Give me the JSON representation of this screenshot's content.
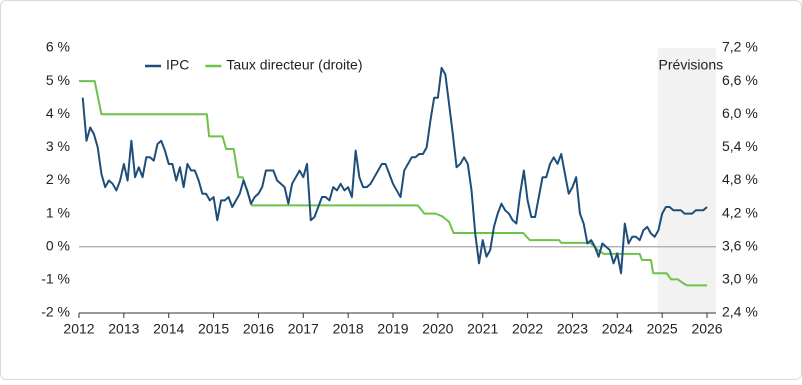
{
  "chart_data": {
    "type": "line",
    "xlim": [
      2012,
      2026.2
    ],
    "xticks": [
      2012,
      2013,
      2014,
      2015,
      2016,
      2017,
      2018,
      2019,
      2020,
      2021,
      2022,
      2023,
      2024,
      2025,
      2026
    ],
    "ylim": [
      -2,
      6
    ],
    "yticks": [
      {
        "value": 6,
        "label": "6 %"
      },
      {
        "value": 5,
        "label": "5 %"
      },
      {
        "value": 4,
        "label": "4 %"
      },
      {
        "value": 3,
        "label": "3 %"
      },
      {
        "value": 2,
        "label": "2 %"
      },
      {
        "value": 1,
        "label": "1 %"
      },
      {
        "value": 0,
        "label": "0 %"
      },
      {
        "value": -1,
        "label": "-1 %"
      },
      {
        "value": -2,
        "label": "-2 %"
      }
    ],
    "y2lim": [
      2.4,
      7.2
    ],
    "y2ticks": [
      {
        "value": 7.2,
        "label": "7,2 %"
      },
      {
        "value": 6.6,
        "label": "6,6 %"
      },
      {
        "value": 6.0,
        "label": "6,0 %"
      },
      {
        "value": 5.4,
        "label": "5,4 %"
      },
      {
        "value": 4.8,
        "label": "4,8 %"
      },
      {
        "value": 4.2,
        "label": "4,2 %"
      },
      {
        "value": 3.6,
        "label": "3,6 %"
      },
      {
        "value": 3.0,
        "label": "3,0 %"
      },
      {
        "value": 2.4,
        "label": "2,4 %"
      }
    ],
    "legend": "top-left",
    "annotations": [
      {
        "text": "Prévisions",
        "x": 2024.9
      }
    ],
    "series": [
      {
        "name": "IPC",
        "color": "#1d4e7a",
        "x": [
          2012.083,
          2012.167,
          2012.25,
          2012.333,
          2012.417,
          2012.5,
          2012.583,
          2012.667,
          2012.75,
          2012.833,
          2012.917,
          2013.0,
          2013.083,
          2013.167,
          2013.25,
          2013.333,
          2013.417,
          2013.5,
          2013.583,
          2013.667,
          2013.75,
          2013.833,
          2013.917,
          2014.0,
          2014.083,
          2014.167,
          2014.25,
          2014.333,
          2014.417,
          2014.5,
          2014.583,
          2014.667,
          2014.75,
          2014.833,
          2014.917,
          2015.0,
          2015.083,
          2015.167,
          2015.25,
          2015.333,
          2015.417,
          2015.5,
          2015.583,
          2015.667,
          2015.75,
          2015.833,
          2015.917,
          2016.0,
          2016.083,
          2016.167,
          2016.25,
          2016.333,
          2016.417,
          2016.5,
          2016.583,
          2016.667,
          2016.75,
          2016.833,
          2016.917,
          2017.0,
          2017.083,
          2017.167,
          2017.25,
          2017.333,
          2017.417,
          2017.5,
          2017.583,
          2017.667,
          2017.75,
          2017.833,
          2017.917,
          2018.0,
          2018.083,
          2018.167,
          2018.25,
          2018.333,
          2018.417,
          2018.5,
          2018.583,
          2018.667,
          2018.75,
          2018.833,
          2018.917,
          2019.0,
          2019.083,
          2019.167,
          2019.25,
          2019.333,
          2019.417,
          2019.5,
          2019.583,
          2019.667,
          2019.75,
          2019.833,
          2019.917,
          2020.0,
          2020.083,
          2020.167,
          2020.25,
          2020.333,
          2020.417,
          2020.5,
          2020.583,
          2020.667,
          2020.75,
          2020.833,
          2020.917,
          2021.0,
          2021.083,
          2021.167,
          2021.25,
          2021.333,
          2021.417,
          2021.5,
          2021.583,
          2021.667,
          2021.75,
          2021.833,
          2021.917,
          2022.0,
          2022.083,
          2022.167,
          2022.25,
          2022.333,
          2022.417,
          2022.5,
          2022.583,
          2022.667,
          2022.75,
          2022.833,
          2022.917,
          2023.0,
          2023.083,
          2023.167,
          2023.25,
          2023.333,
          2023.417,
          2023.5,
          2023.583,
          2023.667,
          2023.75,
          2023.833,
          2023.917,
          2024.0,
          2024.083,
          2024.167,
          2024.25,
          2024.333,
          2024.417,
          2024.5,
          2024.583,
          2024.667,
          2024.75,
          2024.833,
          2024.917,
          2025.0,
          2025.083,
          2025.167,
          2025.25,
          2025.333,
          2025.417,
          2025.5,
          2025.583,
          2025.667,
          2025.75,
          2025.833,
          2025.917,
          2026.0
        ],
        "values": [
          4.5,
          3.2,
          3.6,
          3.4,
          3.0,
          2.2,
          1.8,
          2.0,
          1.9,
          1.7,
          2.0,
          2.5,
          2.0,
          3.2,
          2.1,
          2.4,
          2.1,
          2.7,
          2.7,
          2.6,
          3.1,
          3.2,
          2.9,
          2.5,
          2.5,
          2.0,
          2.4,
          1.8,
          2.5,
          2.3,
          2.3,
          2.0,
          1.6,
          1.6,
          1.4,
          1.5,
          0.8,
          1.4,
          1.4,
          1.5,
          1.2,
          1.4,
          1.6,
          2.0,
          1.7,
          1.3,
          1.5,
          1.6,
          1.8,
          2.3,
          2.3,
          2.3,
          2.0,
          1.9,
          1.8,
          1.3,
          1.9,
          2.1,
          2.3,
          2.1,
          2.5,
          0.8,
          0.9,
          1.2,
          1.5,
          1.5,
          1.4,
          1.8,
          1.7,
          1.9,
          1.7,
          1.8,
          1.5,
          2.9,
          2.1,
          1.8,
          1.8,
          1.9,
          2.1,
          2.3,
          2.5,
          2.5,
          2.2,
          1.9,
          1.7,
          1.5,
          2.3,
          2.5,
          2.7,
          2.7,
          2.8,
          2.8,
          3.0,
          3.8,
          4.5,
          4.5,
          5.4,
          5.2,
          4.3,
          3.4,
          2.4,
          2.5,
          2.7,
          2.5,
          1.7,
          0.4,
          -0.5,
          0.2,
          -0.3,
          -0.1,
          0.6,
          1.0,
          1.3,
          1.1,
          1.0,
          0.8,
          0.7,
          1.6,
          2.3,
          1.4,
          0.9,
          0.9,
          1.5,
          2.1,
          2.1,
          2.5,
          2.7,
          2.5,
          2.8,
          2.2,
          1.6,
          1.8,
          2.1,
          1.0,
          0.7,
          0.1,
          0.2,
          0.0,
          -0.3,
          0.1,
          0.0,
          -0.1,
          -0.5,
          -0.2,
          -0.8,
          0.7,
          0.1,
          0.3,
          0.3,
          0.2,
          0.5,
          0.6,
          0.4,
          0.3,
          0.5,
          1.0,
          1.2,
          1.2,
          1.1,
          1.1,
          1.1,
          1.0,
          1.0,
          1.0,
          1.1,
          1.1,
          1.1,
          1.2
        ]
      },
      {
        "name": "Taux directeur (droite)",
        "color": "#6cc24a",
        "axis": "y2",
        "x": [
          2012.0,
          2012.35,
          2012.5,
          2014.85,
          2014.9,
          2015.2,
          2015.28,
          2015.45,
          2015.55,
          2015.65,
          2015.85,
          2019.55,
          2019.7,
          2019.95,
          2020.1,
          2020.25,
          2020.35,
          2021.9,
          2022.05,
          2022.7,
          2022.75,
          2023.4,
          2023.55,
          2023.7,
          2024.5,
          2024.55,
          2024.75,
          2024.8,
          2025.1,
          2025.2,
          2025.35,
          2025.45,
          2025.55,
          2026.0
        ],
        "values": [
          6.6,
          6.6,
          6.0,
          6.0,
          5.6,
          5.6,
          5.37,
          5.37,
          4.86,
          4.86,
          4.35,
          4.35,
          4.2,
          4.2,
          4.15,
          4.05,
          3.85,
          3.85,
          3.72,
          3.72,
          3.67,
          3.67,
          3.55,
          3.47,
          3.47,
          3.36,
          3.36,
          3.12,
          3.12,
          3.01,
          3.01,
          2.95,
          2.9,
          2.9
        ]
      }
    ]
  }
}
